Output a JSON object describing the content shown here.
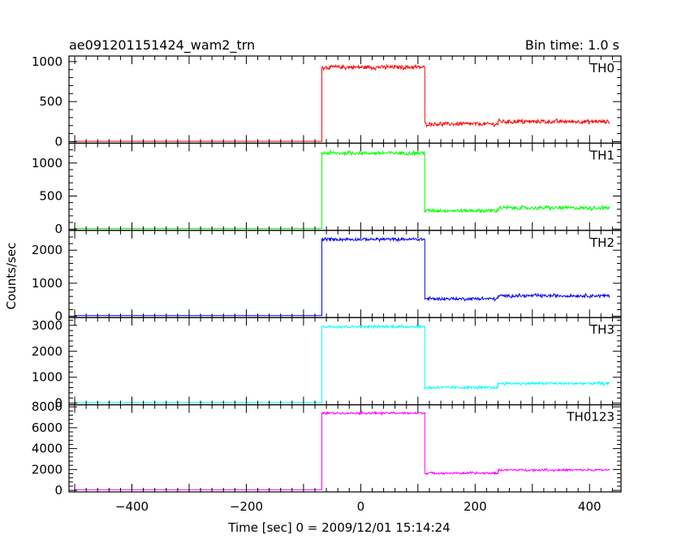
{
  "chart_data": {
    "type": "line",
    "title": "ae091201151424_wam2_trn",
    "bin_time": "Bin time: 1.0 s",
    "xlabel": "Time [sec] 0 = 2009/12/01 15:14:24",
    "ylabel": "Counts/sec",
    "xlim": [
      -510,
      455
    ],
    "x_ticks": [
      -400,
      -200,
      0,
      200,
      400
    ],
    "panels": [
      {
        "name": "TH0",
        "color": "#ff0000",
        "ylim": [
          -20,
          1070
        ],
        "y_ticks": [
          0,
          500,
          1000
        ],
        "segments": [
          {
            "x": [
              -500,
              -68
            ],
            "y": 5
          },
          {
            "x": [
              -68,
              112
            ],
            "y": 930
          },
          {
            "x": [
              112,
              240
            ],
            "y": 220
          },
          {
            "x": [
              240,
              435
            ],
            "y": 250
          }
        ],
        "noise": 22
      },
      {
        "name": "TH1",
        "color": "#00ff00",
        "ylim": [
          -20,
          1300
        ],
        "y_ticks": [
          0,
          500,
          1000
        ],
        "segments": [
          {
            "x": [
              -500,
              -68
            ],
            "y": 10
          },
          {
            "x": [
              -68,
              112
            ],
            "y": 1150
          },
          {
            "x": [
              112,
              240
            ],
            "y": 280
          },
          {
            "x": [
              240,
              435
            ],
            "y": 320
          }
        ],
        "noise": 25
      },
      {
        "name": "TH2",
        "color": "#0000ff",
        "ylim": [
          -40,
          2600
        ],
        "y_ticks": [
          0,
          1000,
          2000
        ],
        "segments": [
          {
            "x": [
              -500,
              -68
            ],
            "y": 20
          },
          {
            "x": [
              -68,
              112
            ],
            "y": 2330
          },
          {
            "x": [
              112,
              240
            ],
            "y": 530
          },
          {
            "x": [
              240,
              435
            ],
            "y": 620
          }
        ],
        "noise": 40
      },
      {
        "name": "TH3",
        "color": "#00ffff",
        "ylim": [
          -60,
          3300
        ],
        "y_ticks": [
          0,
          1000,
          2000,
          3000
        ],
        "segments": [
          {
            "x": [
              -500,
              -68
            ],
            "y": 30
          },
          {
            "x": [
              -68,
              112
            ],
            "y": 2950
          },
          {
            "x": [
              112,
              240
            ],
            "y": 600
          },
          {
            "x": [
              240,
              435
            ],
            "y": 760
          }
        ],
        "noise": 45
      },
      {
        "name": "TH0123",
        "color": "#ff00ff",
        "ylim": [
          -150,
          8200
        ],
        "y_ticks": [
          0,
          2000,
          4000,
          6000,
          8000
        ],
        "segments": [
          {
            "x": [
              -500,
              -68
            ],
            "y": 60
          },
          {
            "x": [
              -68,
              112
            ],
            "y": 7400
          },
          {
            "x": [
              112,
              240
            ],
            "y": 1650
          },
          {
            "x": [
              240,
              435
            ],
            "y": 1950
          }
        ],
        "noise": 90
      }
    ]
  }
}
